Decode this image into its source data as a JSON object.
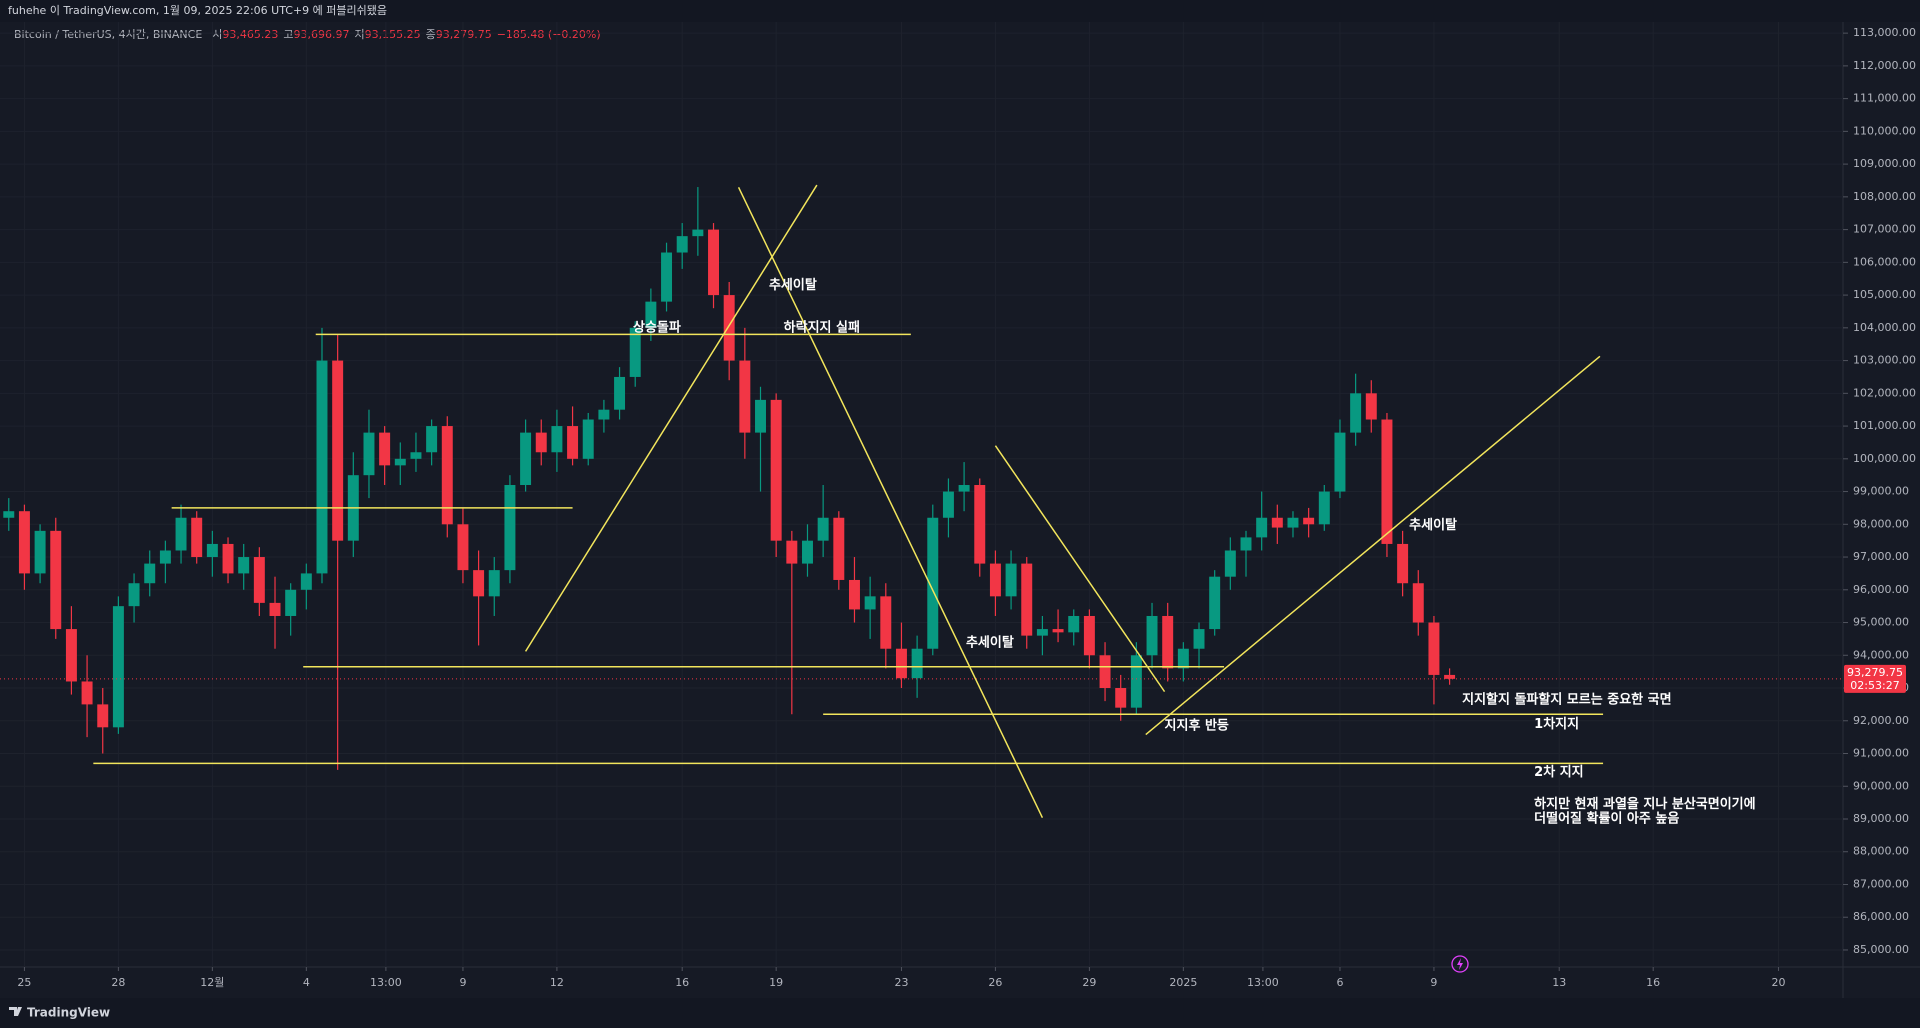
{
  "header": {
    "title": "fuhehe 이 TradingView.com, 1월 09, 2025 22:06 UTC+9 에 퍼블리쉬됐음"
  },
  "legend": {
    "symbol": "Bitcoin / TetherUS, 4시간, BINANCE",
    "items": [
      {
        "key": "시",
        "text": "93,465.23"
      },
      {
        "key": "고",
        "text": "93,696.97"
      },
      {
        "key": "저",
        "text": "93,155.25"
      },
      {
        "key": "종",
        "text": "93,279.75"
      }
    ],
    "change": "−185.48 (−0.20%)"
  },
  "footer": {
    "brand": "TradingView"
  },
  "chart_data": {
    "type": "candlestick",
    "up_color": "#089981",
    "down_color": "#f23645",
    "drawing_color": "#f2e55c",
    "xlim": [
      -0.78,
      58.06
    ],
    "xticks": [
      {
        "value": 0,
        "label": "25"
      },
      {
        "value": 3,
        "label": "28"
      },
      {
        "value": 6,
        "label": "12월"
      },
      {
        "value": 9,
        "label": "4"
      },
      {
        "value": 11.54,
        "label": "13:00"
      },
      {
        "value": 14,
        "label": "9"
      },
      {
        "value": 17,
        "label": "12"
      },
      {
        "value": 21,
        "label": "16"
      },
      {
        "value": 24,
        "label": "19"
      },
      {
        "value": 28,
        "label": "23"
      },
      {
        "value": 31,
        "label": "26"
      },
      {
        "value": 34,
        "label": "29"
      },
      {
        "value": 37,
        "label": "2025"
      },
      {
        "value": 39.54,
        "label": "13:00"
      },
      {
        "value": 42,
        "label": "6"
      },
      {
        "value": 45,
        "label": "9"
      },
      {
        "value": 49,
        "label": "13"
      },
      {
        "value": 52,
        "label": "16"
      },
      {
        "value": 56,
        "label": "20"
      }
    ],
    "ylim": [
      84480,
      113340
    ],
    "yticks": [
      {
        "value": 85000,
        "label": "85,000.00"
      },
      {
        "value": 86000,
        "label": "86,000.00"
      },
      {
        "value": 87000,
        "label": "87,000.00"
      },
      {
        "value": 88000,
        "label": "88,000.00"
      },
      {
        "value": 89000,
        "label": "89,000.00"
      },
      {
        "value": 90000,
        "label": "90,000.00"
      },
      {
        "value": 91000,
        "label": "91,000.00"
      },
      {
        "value": 92000,
        "label": "92,000.00"
      },
      {
        "value": 93000,
        "label": "93,000.00"
      },
      {
        "value": 94000,
        "label": "94,000.00"
      },
      {
        "value": 95000,
        "label": "95,000.00"
      },
      {
        "value": 96000,
        "label": "96,000.00"
      },
      {
        "value": 97000,
        "label": "97,000.00"
      },
      {
        "value": 98000,
        "label": "98,000.00"
      },
      {
        "value": 99000,
        "label": "99,000.00"
      },
      {
        "value": 100000,
        "label": "100,000.00"
      },
      {
        "value": 101000,
        "label": "101,000.00"
      },
      {
        "value": 102000,
        "label": "102,000.00"
      },
      {
        "value": 103000,
        "label": "103,000.00"
      },
      {
        "value": 104000,
        "label": "104,000.00"
      },
      {
        "value": 105000,
        "label": "105,000.00"
      },
      {
        "value": 106000,
        "label": "106,000.00"
      },
      {
        "value": 107000,
        "label": "107,000.00"
      },
      {
        "value": 108000,
        "label": "108,000.00"
      },
      {
        "value": 109000,
        "label": "109,000.00"
      },
      {
        "value": 110000,
        "label": "110,000.00"
      },
      {
        "value": 111000,
        "label": "111,000.00"
      },
      {
        "value": 112000,
        "label": "112,000.00"
      },
      {
        "value": 113000,
        "label": "113,000.00"
      }
    ],
    "last_price": {
      "value": 93279.75,
      "label": "93,279.75"
    },
    "countdown": "02:53:27",
    "x": [
      -0.5,
      0,
      0.5,
      1,
      1.5,
      2,
      2.5,
      3,
      3.5,
      4,
      4.5,
      5,
      5.5,
      6,
      6.5,
      7,
      7.5,
      8,
      8.5,
      9,
      9.5,
      10,
      10.5,
      11,
      11.5,
      12,
      12.5,
      13,
      13.5,
      14,
      14.5,
      15,
      15.5,
      16,
      16.5,
      17,
      17.5,
      18,
      18.5,
      19,
      19.5,
      20,
      20.5,
      21,
      21.5,
      22,
      22.5,
      23,
      23.5,
      24,
      24.5,
      25,
      25.5,
      26,
      26.5,
      27,
      27.5,
      28,
      28.5,
      29,
      29.5,
      30,
      30.5,
      31,
      31.5,
      32,
      32.5,
      33,
      33.5,
      34,
      34.5,
      35,
      35.5,
      36,
      36.5,
      37,
      37.5,
      38,
      38.5,
      39,
      39.5,
      40,
      40.5,
      41,
      41.5,
      42,
      42.5,
      43,
      43.5,
      44,
      44.5,
      45,
      45.5
    ],
    "candles": [
      [
        98200,
        98800,
        97800,
        98400
      ],
      [
        98400,
        98600,
        96000,
        96500
      ],
      [
        96500,
        98000,
        96200,
        97800
      ],
      [
        97800,
        98200,
        94500,
        94800
      ],
      [
        94800,
        95500,
        92800,
        93200
      ],
      [
        93200,
        94000,
        91500,
        92500
      ],
      [
        92500,
        93000,
        91000,
        91800
      ],
      [
        91800,
        95800,
        91600,
        95500
      ],
      [
        95500,
        96500,
        95000,
        96200
      ],
      [
        96200,
        97200,
        95800,
        96800
      ],
      [
        96800,
        97500,
        96200,
        97200
      ],
      [
        97200,
        98600,
        96800,
        98200
      ],
      [
        98200,
        98400,
        96800,
        97000
      ],
      [
        97000,
        97800,
        96400,
        97400
      ],
      [
        97400,
        97600,
        96200,
        96500
      ],
      [
        96500,
        97400,
        96000,
        97000
      ],
      [
        97000,
        97300,
        95200,
        95600
      ],
      [
        95600,
        96400,
        94200,
        95200
      ],
      [
        95200,
        96200,
        94600,
        96000
      ],
      [
        96000,
        96800,
        95400,
        96500
      ],
      [
        96500,
        104000,
        96200,
        103000
      ],
      [
        103000,
        103800,
        90500,
        97500
      ],
      [
        97500,
        100200,
        97000,
        99500
      ],
      [
        99500,
        101500,
        98800,
        100800
      ],
      [
        100800,
        101000,
        99200,
        99800
      ],
      [
        99800,
        100500,
        99200,
        100000
      ],
      [
        100000,
        100800,
        99600,
        100200
      ],
      [
        100200,
        101200,
        99800,
        101000
      ],
      [
        101000,
        101300,
        97600,
        98000
      ],
      [
        98000,
        98500,
        96200,
        96600
      ],
      [
        96600,
        97200,
        94300,
        95800
      ],
      [
        95800,
        97000,
        95200,
        96600
      ],
      [
        96600,
        99500,
        96200,
        99200
      ],
      [
        99200,
        101200,
        99000,
        100800
      ],
      [
        100800,
        101200,
        99800,
        100200
      ],
      [
        100200,
        101500,
        99600,
        101000
      ],
      [
        101000,
        101600,
        99800,
        100000
      ],
      [
        100000,
        101400,
        99800,
        101200
      ],
      [
        101200,
        101800,
        100800,
        101500
      ],
      [
        101500,
        102800,
        101200,
        102500
      ],
      [
        102500,
        104200,
        102200,
        104000
      ],
      [
        104000,
        105200,
        103600,
        104800
      ],
      [
        104800,
        106600,
        104500,
        106300
      ],
      [
        106300,
        107200,
        105800,
        106800
      ],
      [
        106800,
        108300,
        106200,
        107000
      ],
      [
        107000,
        107200,
        104600,
        105000
      ],
      [
        105000,
        105400,
        102400,
        103000
      ],
      [
        103000,
        104000,
        100000,
        100800
      ],
      [
        100800,
        102200,
        99000,
        101800
      ],
      [
        101800,
        102000,
        97000,
        97500
      ],
      [
        97500,
        97800,
        92200,
        96800
      ],
      [
        96800,
        98000,
        96400,
        97500
      ],
      [
        97500,
        99200,
        97000,
        98200
      ],
      [
        98200,
        98400,
        96000,
        96300
      ],
      [
        96300,
        97000,
        95000,
        95400
      ],
      [
        95400,
        96400,
        94500,
        95800
      ],
      [
        95800,
        96200,
        93600,
        94200
      ],
      [
        94200,
        95000,
        93000,
        93300
      ],
      [
        93300,
        94600,
        92700,
        94200
      ],
      [
        94200,
        98600,
        94000,
        98200
      ],
      [
        98200,
        99400,
        97600,
        99000
      ],
      [
        99000,
        99900,
        98400,
        99200
      ],
      [
        99200,
        99400,
        96400,
        96800
      ],
      [
        96800,
        97200,
        95200,
        95800
      ],
      [
        95800,
        97200,
        95400,
        96800
      ],
      [
        96800,
        97000,
        94200,
        94600
      ],
      [
        94600,
        95200,
        94000,
        94800
      ],
      [
        94800,
        95400,
        94400,
        94700
      ],
      [
        94700,
        95400,
        94300,
        95200
      ],
      [
        95200,
        95400,
        93600,
        94000
      ],
      [
        94000,
        94400,
        92600,
        93000
      ],
      [
        93000,
        93400,
        92000,
        92400
      ],
      [
        92400,
        94400,
        92200,
        94000
      ],
      [
        94000,
        95600,
        93600,
        95200
      ],
      [
        95200,
        95600,
        93200,
        93600
      ],
      [
        93600,
        94400,
        93200,
        94200
      ],
      [
        94200,
        95000,
        93600,
        94800
      ],
      [
        94800,
        96600,
        94600,
        96400
      ],
      [
        96400,
        97600,
        96000,
        97200
      ],
      [
        97200,
        97800,
        96400,
        97600
      ],
      [
        97600,
        99000,
        97200,
        98200
      ],
      [
        98200,
        98600,
        97400,
        97900
      ],
      [
        97900,
        98400,
        97600,
        98200
      ],
      [
        98200,
        98500,
        97600,
        98000
      ],
      [
        98000,
        99200,
        97800,
        99000
      ],
      [
        99000,
        101200,
        98800,
        100800
      ],
      [
        100800,
        102600,
        100400,
        102000
      ],
      [
        102000,
        102400,
        100800,
        101200
      ],
      [
        101200,
        101400,
        97000,
        97400
      ],
      [
        97400,
        97800,
        95800,
        96200
      ],
      [
        96200,
        96600,
        94600,
        95000
      ],
      [
        95000,
        95200,
        92500,
        93400
      ],
      [
        93400,
        93600,
        93100,
        93280
      ]
    ],
    "drawings": [
      {
        "x": [
          9.3,
          28.3
        ],
        "y": [
          103800,
          103800
        ]
      },
      {
        "x": [
          4.7,
          17.5
        ],
        "y": [
          98500,
          98500
        ]
      },
      {
        "x": [
          8.9,
          38.3
        ],
        "y": [
          93650,
          93650
        ]
      },
      {
        "x": [
          25.5,
          50.4
        ],
        "y": [
          92200,
          92200
        ]
      },
      {
        "x": [
          2.2,
          50.4
        ],
        "y": [
          90700,
          90700
        ]
      },
      {
        "x": [
          16.0,
          25.3
        ],
        "y": [
          94120,
          108360
        ]
      },
      {
        "x": [
          22.8,
          32.5
        ],
        "y": [
          108290,
          89040
        ]
      },
      {
        "x": [
          31.0,
          36.4
        ],
        "y": [
          100400,
          92890
        ]
      },
      {
        "x": [
          35.8,
          50.3
        ],
        "y": [
          91580,
          103130
        ]
      }
    ],
    "annotations": [
      {
        "text": "상승돌파",
        "x": 19.43,
        "y": 103990
      },
      {
        "text": "하락지지 실패",
        "x": 24.24,
        "y": 103990
      },
      {
        "text": "추세이탈",
        "x": 23.77,
        "y": 105300
      },
      {
        "text": "추세이탈",
        "x": 30.06,
        "y": 94380
      },
      {
        "text": "지지후 반등",
        "x": 36.4,
        "y": 91840
      },
      {
        "text": "추세이탈",
        "x": 44.21,
        "y": 97970
      },
      {
        "text": "지지할지 돌파할지 모르는 중요한 국면",
        "x": 45.9,
        "y": 92630
      },
      {
        "text": "1차지지",
        "x": 48.2,
        "y": 91880
      },
      {
        "text": "2차 지지",
        "x": 48.2,
        "y": 90420
      },
      {
        "text": "하지만 현재 과열을 지나 분산국면이기에",
        "x": 48.2,
        "y": 89440
      },
      {
        "text": "더떨어질 확률이 아주 높음",
        "x": 48.2,
        "y": 89000
      }
    ]
  }
}
